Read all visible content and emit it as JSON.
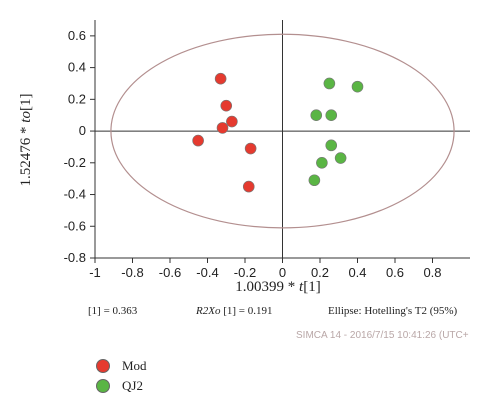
{
  "chart_data": {
    "type": "scatter",
    "title": "",
    "xlabel_prefix": "1.00399 * ",
    "xlabel_var": "t",
    "xlabel_suffix": "[1]",
    "ylabel_prefix": "1.52476 * ",
    "ylabel_var": "to",
    "ylabel_suffix": "[1]",
    "xlim": [
      -1,
      1
    ],
    "ylim": [
      -0.8,
      0.7
    ],
    "xticks": [
      "-1",
      "-0.8",
      "-0.6",
      "-0.4",
      "-0.2",
      "0",
      "0.2",
      "0.4",
      "0.6",
      "0.8"
    ],
    "xtick_values": [
      -1,
      -0.8,
      -0.6,
      -0.4,
      -0.2,
      0,
      0.2,
      0.4,
      0.6,
      0.8
    ],
    "yticks": [
      "0.6",
      "0.4",
      "0.2",
      "0",
      "-0.2",
      "-0.4",
      "-0.6",
      "-0.8"
    ],
    "ytick_values": [
      0.6,
      0.4,
      0.2,
      0,
      -0.2,
      -0.4,
      -0.6,
      -0.8
    ],
    "ellipse": {
      "cx": 0,
      "cy": 0,
      "rx": 0.915,
      "ry": 0.61,
      "label": "Ellipse: Hotelling's T2 (95%)"
    },
    "series": [
      {
        "name": "Mod",
        "color": "#e53a2f",
        "points": [
          {
            "x": -0.33,
            "y": 0.33
          },
          {
            "x": -0.3,
            "y": 0.16
          },
          {
            "x": -0.27,
            "y": 0.06
          },
          {
            "x": -0.32,
            "y": 0.02
          },
          {
            "x": -0.45,
            "y": -0.06
          },
          {
            "x": -0.17,
            "y": -0.11
          },
          {
            "x": -0.18,
            "y": -0.35
          }
        ]
      },
      {
        "name": "QJ2",
        "color": "#5ab544",
        "points": [
          {
            "x": 0.25,
            "y": 0.3
          },
          {
            "x": 0.4,
            "y": 0.28
          },
          {
            "x": 0.18,
            "y": 0.1
          },
          {
            "x": 0.26,
            "y": 0.1
          },
          {
            "x": 0.26,
            "y": -0.09
          },
          {
            "x": 0.31,
            "y": -0.17
          },
          {
            "x": 0.21,
            "y": -0.2
          },
          {
            "x": 0.17,
            "y": -0.31
          }
        ]
      }
    ],
    "legend_position": "bottom-left",
    "grid": false
  },
  "stats": {
    "component": "[1] = 0.363",
    "r2xo_label": "R2Xo",
    "r2xo_value": "[1] = 0.191",
    "ellipse_label": "Ellipse: Hotelling's T2 (95%)"
  },
  "stamp": "SIMCA 14 - 2016/7/15 10:41:26 (UTC+",
  "legend": [
    {
      "label": "Mod",
      "color": "#e53a2f"
    },
    {
      "label": "QJ2",
      "color": "#5ab544"
    }
  ]
}
